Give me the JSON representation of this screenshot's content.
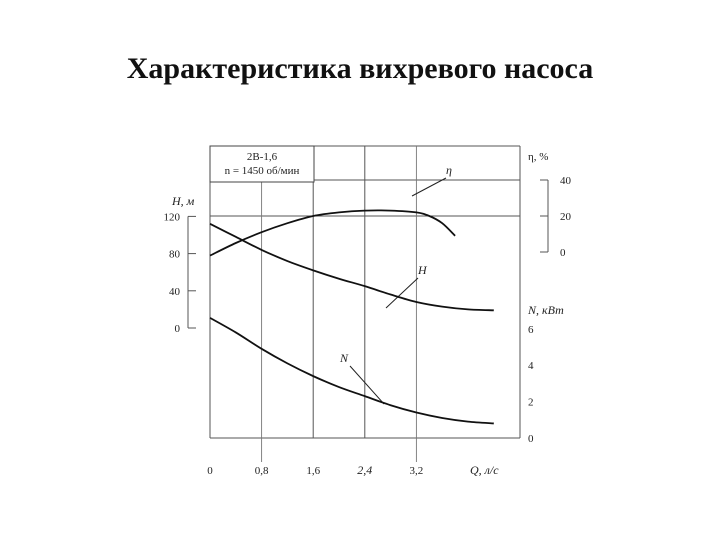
{
  "slide": {
    "title": "Характеристика вихревого насоса"
  },
  "chart_data": {
    "type": "line",
    "title": "Характеристика вихревого насоса",
    "legend_box": {
      "line1": "2В-1,6",
      "line2": "n = 1450 об/мин"
    },
    "xlabel": "Q, л/с",
    "xlim": [
      0,
      4.0
    ],
    "x_ticks": [
      0,
      0.8,
      1.6,
      2.4,
      3.2
    ],
    "x_tick_labels": [
      "0",
      "0,8",
      "1,6",
      "2,4",
      "3,2"
    ],
    "axes": {
      "H": {
        "label": "Н, м",
        "ticks": [
          0,
          40,
          80,
          120
        ],
        "tick_labels": [
          "0",
          "40",
          "80",
          "120"
        ]
      },
      "eta": {
        "label": "η, %",
        "ticks": [
          0,
          20,
          40
        ],
        "tick_labels": [
          "0",
          "20",
          "40"
        ]
      },
      "N": {
        "label": "N, кВт",
        "ticks": [
          0,
          2,
          4,
          6
        ],
        "tick_labels": [
          "0",
          "2",
          "4",
          "6"
        ]
      }
    },
    "series": [
      {
        "name": "η",
        "axis": "eta",
        "x": [
          0,
          0.4,
          0.8,
          1.2,
          1.6,
          2.0,
          2.4,
          2.8,
          3.2,
          3.4,
          3.6,
          3.8
        ],
        "y": [
          -2,
          5,
          11,
          16,
          20,
          22,
          23,
          23,
          22,
          20,
          16,
          9
        ]
      },
      {
        "name": "H",
        "axis": "H",
        "x": [
          0,
          0.4,
          0.8,
          1.2,
          1.6,
          2.0,
          2.4,
          2.8,
          3.2,
          3.6,
          4.0,
          4.4
        ],
        "y": [
          112,
          98,
          84,
          72,
          62,
          53,
          45,
          36,
          28,
          23,
          20,
          19
        ]
      },
      {
        "name": "N",
        "axis": "N",
        "x": [
          0,
          0.4,
          0.8,
          1.2,
          1.6,
          2.0,
          2.4,
          2.8,
          3.2,
          3.6,
          4.0,
          4.4
        ],
        "y": [
          6.6,
          5.8,
          4.9,
          4.1,
          3.4,
          2.8,
          2.3,
          1.8,
          1.4,
          1.1,
          0.9,
          0.8
        ]
      }
    ],
    "curve_labels": {
      "eta": "η",
      "H": "H",
      "N": "N"
    },
    "grid": true
  }
}
